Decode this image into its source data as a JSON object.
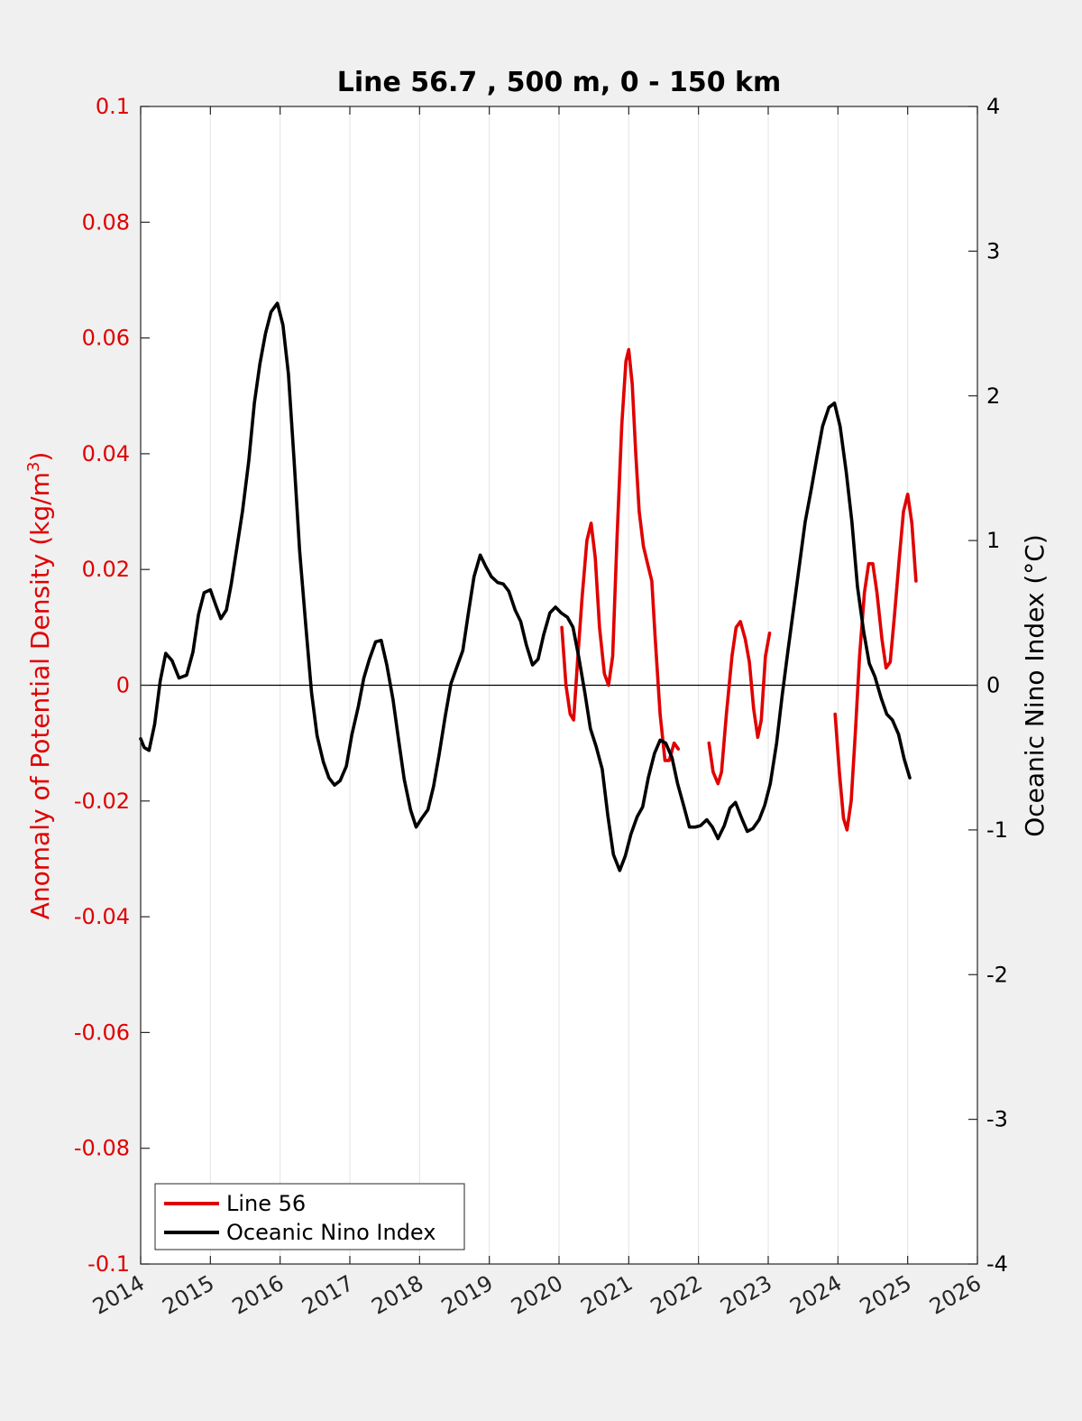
{
  "chart_data": {
    "type": "line",
    "title": "Line 56.7 , 500 m, 0 - 150 km",
    "xlim": [
      2014,
      2026
    ],
    "x_ticks": [
      2014,
      2015,
      2016,
      2017,
      2018,
      2019,
      2020,
      2021,
      2022,
      2023,
      2024,
      2025,
      2026
    ],
    "x_tick_labels": [
      "2014",
      "2015",
      "2016",
      "2017",
      "2018",
      "2019",
      "2020",
      "2021",
      "2022",
      "2023",
      "2024",
      "2025",
      "2026"
    ],
    "x_grid": true,
    "zero_line": true,
    "left_axis": {
      "label_main": "Anomaly of Potential Density (kg/m",
      "label_sup": "3",
      "label_end": ")",
      "ylim": [
        -0.1,
        0.1
      ],
      "ticks": [
        -0.1,
        -0.08,
        -0.06,
        -0.04,
        -0.02,
        0,
        0.02,
        0.04,
        0.06,
        0.08,
        0.1
      ],
      "tick_labels": [
        "-0.1",
        "-0.08",
        "-0.06",
        "-0.04",
        "-0.02",
        "0",
        "0.02",
        "0.04",
        "0.06",
        "0.08",
        "0.1"
      ],
      "color": "#e00000"
    },
    "right_axis": {
      "label": "Oceanic Nino Index (°C)",
      "ylim": [
        -4,
        4
      ],
      "ticks": [
        -4,
        -3,
        -2,
        -1,
        0,
        1,
        2,
        3,
        4
      ],
      "tick_labels": [
        "-4",
        "-3",
        "-2",
        "-1",
        "0",
        "1",
        "2",
        "3",
        "4"
      ],
      "color": "#000000"
    },
    "legend": {
      "placement": "bottom-left",
      "entries": [
        {
          "label": "Line 56",
          "color": "#e00000"
        },
        {
          "label": "Oceanic Nino Index",
          "color": "#000000"
        }
      ]
    },
    "series": [
      {
        "name": "Line 56",
        "axis": "left",
        "color": "#e00000",
        "segments": [
          [
            [
              2020.04,
              0.01
            ],
            [
              2020.1,
              0.0
            ],
            [
              2020.16,
              -0.005
            ],
            [
              2020.21,
              -0.006
            ],
            [
              2020.27,
              0.005
            ],
            [
              2020.33,
              0.015
            ],
            [
              2020.4,
              0.025
            ],
            [
              2020.46,
              0.028
            ],
            [
              2020.52,
              0.022
            ],
            [
              2020.58,
              0.01
            ],
            [
              2020.65,
              0.002
            ],
            [
              2020.71,
              0.0
            ],
            [
              2020.77,
              0.005
            ],
            [
              2020.83,
              0.025
            ],
            [
              2020.9,
              0.045
            ],
            [
              2020.96,
              0.056
            ],
            [
              2021.0,
              0.058
            ],
            [
              2021.05,
              0.052
            ],
            [
              2021.1,
              0.04
            ],
            [
              2021.15,
              0.03
            ],
            [
              2021.21,
              0.024
            ],
            [
              2021.27,
              0.021
            ],
            [
              2021.33,
              0.018
            ],
            [
              2021.38,
              0.008
            ],
            [
              2021.45,
              -0.005
            ],
            [
              2021.52,
              -0.013
            ],
            [
              2021.58,
              -0.013
            ],
            [
              2021.65,
              -0.01
            ],
            [
              2021.71,
              -0.011
            ]
          ],
          [
            [
              2022.15,
              -0.01
            ],
            [
              2022.21,
              -0.015
            ],
            [
              2022.28,
              -0.017
            ],
            [
              2022.33,
              -0.015
            ],
            [
              2022.4,
              -0.005
            ],
            [
              2022.48,
              0.005
            ],
            [
              2022.54,
              0.01
            ],
            [
              2022.6,
              0.011
            ],
            [
              2022.67,
              0.008
            ],
            [
              2022.73,
              0.004
            ],
            [
              2022.79,
              -0.004
            ],
            [
              2022.85,
              -0.009
            ],
            [
              2022.9,
              -0.006
            ],
            [
              2022.96,
              0.005
            ],
            [
              2023.02,
              0.009
            ]
          ],
          [
            [
              2023.96,
              -0.005
            ],
            [
              2024.02,
              -0.015
            ],
            [
              2024.08,
              -0.023
            ],
            [
              2024.13,
              -0.025
            ],
            [
              2024.19,
              -0.02
            ],
            [
              2024.25,
              -0.008
            ],
            [
              2024.31,
              0.005
            ],
            [
              2024.38,
              0.016
            ],
            [
              2024.44,
              0.021
            ],
            [
              2024.5,
              0.021
            ],
            [
              2024.56,
              0.016
            ],
            [
              2024.63,
              0.008
            ],
            [
              2024.69,
              0.003
            ],
            [
              2024.75,
              0.004
            ],
            [
              2024.81,
              0.012
            ],
            [
              2024.88,
              0.022
            ],
            [
              2024.94,
              0.03
            ],
            [
              2025.0,
              0.033
            ],
            [
              2025.06,
              0.028
            ],
            [
              2025.12,
              0.018
            ]
          ]
        ]
      },
      {
        "name": "Oceanic Nino Index",
        "axis": "right",
        "color": "#000000",
        "segments": [
          [
            [
              2014.0,
              -0.37
            ],
            [
              2014.05,
              -0.43
            ],
            [
              2014.12,
              -0.45
            ],
            [
              2014.2,
              -0.27
            ],
            [
              2014.28,
              0.03
            ],
            [
              2014.36,
              0.22
            ],
            [
              2014.45,
              0.17
            ],
            [
              2014.55,
              0.05
            ],
            [
              2014.66,
              0.07
            ],
            [
              2014.75,
              0.23
            ],
            [
              2014.83,
              0.49
            ],
            [
              2014.91,
              0.64
            ],
            [
              2015.0,
              0.66
            ],
            [
              2015.08,
              0.55
            ],
            [
              2015.15,
              0.46
            ],
            [
              2015.23,
              0.52
            ],
            [
              2015.3,
              0.7
            ],
            [
              2015.38,
              0.95
            ],
            [
              2015.46,
              1.2
            ],
            [
              2015.55,
              1.55
            ],
            [
              2015.63,
              1.95
            ],
            [
              2015.71,
              2.22
            ],
            [
              2015.79,
              2.43
            ],
            [
              2015.87,
              2.58
            ],
            [
              2015.96,
              2.64
            ],
            [
              2016.04,
              2.49
            ],
            [
              2016.12,
              2.15
            ],
            [
              2016.2,
              1.56
            ],
            [
              2016.28,
              0.93
            ],
            [
              2016.37,
              0.4
            ],
            [
              2016.45,
              -0.05
            ],
            [
              2016.53,
              -0.35
            ],
            [
              2016.62,
              -0.53
            ],
            [
              2016.7,
              -0.64
            ],
            [
              2016.78,
              -0.69
            ],
            [
              2016.86,
              -0.66
            ],
            [
              2016.95,
              -0.56
            ],
            [
              2017.03,
              -0.34
            ],
            [
              2017.12,
              -0.15
            ],
            [
              2017.2,
              0.05
            ],
            [
              2017.28,
              0.18
            ],
            [
              2017.37,
              0.3
            ],
            [
              2017.45,
              0.31
            ],
            [
              2017.53,
              0.14
            ],
            [
              2017.62,
              -0.1
            ],
            [
              2017.7,
              -0.38
            ],
            [
              2017.78,
              -0.65
            ],
            [
              2017.87,
              -0.86
            ],
            [
              2017.95,
              -0.98
            ],
            [
              2018.03,
              -0.92
            ],
            [
              2018.12,
              -0.86
            ],
            [
              2018.2,
              -0.7
            ],
            [
              2018.28,
              -0.48
            ],
            [
              2018.37,
              -0.21
            ],
            [
              2018.45,
              0.01
            ],
            [
              2018.53,
              0.12
            ],
            [
              2018.62,
              0.24
            ],
            [
              2018.7,
              0.5
            ],
            [
              2018.78,
              0.75
            ],
            [
              2018.87,
              0.9
            ],
            [
              2018.95,
              0.82
            ],
            [
              2019.03,
              0.75
            ],
            [
              2019.12,
              0.71
            ],
            [
              2019.2,
              0.7
            ],
            [
              2019.28,
              0.65
            ],
            [
              2019.37,
              0.52
            ],
            [
              2019.45,
              0.44
            ],
            [
              2019.53,
              0.28
            ],
            [
              2019.62,
              0.14
            ],
            [
              2019.7,
              0.18
            ],
            [
              2019.78,
              0.35
            ],
            [
              2019.87,
              0.5
            ],
            [
              2019.95,
              0.54
            ],
            [
              2020.03,
              0.5
            ],
            [
              2020.12,
              0.47
            ],
            [
              2020.2,
              0.4
            ],
            [
              2020.28,
              0.2
            ],
            [
              2020.37,
              -0.05
            ],
            [
              2020.45,
              -0.3
            ],
            [
              2020.53,
              -0.42
            ],
            [
              2020.62,
              -0.58
            ],
            [
              2020.7,
              -0.9
            ],
            [
              2020.78,
              -1.17
            ],
            [
              2020.87,
              -1.28
            ],
            [
              2020.95,
              -1.18
            ],
            [
              2021.03,
              -1.03
            ],
            [
              2021.12,
              -0.91
            ],
            [
              2021.2,
              -0.84
            ],
            [
              2021.28,
              -0.64
            ],
            [
              2021.37,
              -0.47
            ],
            [
              2021.45,
              -0.38
            ],
            [
              2021.53,
              -0.4
            ],
            [
              2021.62,
              -0.5
            ],
            [
              2021.7,
              -0.68
            ],
            [
              2021.78,
              -0.82
            ],
            [
              2021.87,
              -0.98
            ],
            [
              2021.95,
              -0.98
            ],
            [
              2022.03,
              -0.97
            ],
            [
              2022.12,
              -0.93
            ],
            [
              2022.2,
              -0.98
            ],
            [
              2022.28,
              -1.06
            ],
            [
              2022.37,
              -0.97
            ],
            [
              2022.45,
              -0.85
            ],
            [
              2022.53,
              -0.81
            ],
            [
              2022.62,
              -0.92
            ],
            [
              2022.7,
              -1.01
            ],
            [
              2022.78,
              -0.99
            ],
            [
              2022.87,
              -0.93
            ],
            [
              2022.95,
              -0.83
            ],
            [
              2023.03,
              -0.68
            ],
            [
              2023.12,
              -0.4
            ],
            [
              2023.2,
              -0.07
            ],
            [
              2023.28,
              0.23
            ],
            [
              2023.37,
              0.55
            ],
            [
              2023.45,
              0.84
            ],
            [
              2023.53,
              1.13
            ],
            [
              2023.62,
              1.36
            ],
            [
              2023.7,
              1.58
            ],
            [
              2023.78,
              1.79
            ],
            [
              2023.87,
              1.92
            ],
            [
              2023.95,
              1.95
            ],
            [
              2024.03,
              1.79
            ],
            [
              2024.12,
              1.47
            ],
            [
              2024.2,
              1.13
            ],
            [
              2024.28,
              0.68
            ],
            [
              2024.37,
              0.37
            ],
            [
              2024.45,
              0.15
            ],
            [
              2024.53,
              0.06
            ],
            [
              2024.62,
              -0.09
            ],
            [
              2024.7,
              -0.2
            ],
            [
              2024.78,
              -0.24
            ],
            [
              2024.87,
              -0.34
            ],
            [
              2024.95,
              -0.51
            ],
            [
              2025.03,
              -0.64
            ]
          ]
        ]
      }
    ]
  }
}
